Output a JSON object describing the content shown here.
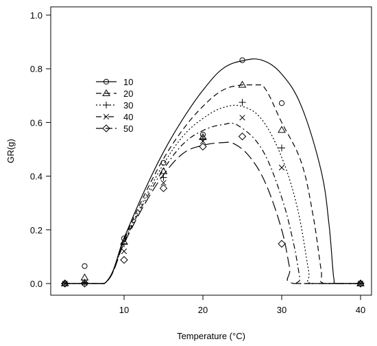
{
  "chart_data": {
    "type": "line",
    "title": "",
    "xlabel": "Temperature (°C)",
    "ylabel": "GR(g)",
    "xlim": [
      2,
      40
    ],
    "ylim": [
      0,
      1.0
    ],
    "xticks": [
      10,
      20,
      30,
      40
    ],
    "yticks": [
      0.0,
      0.2,
      0.4,
      0.6,
      0.8,
      1.0
    ],
    "xtick_labels": [
      "10",
      "20",
      "30",
      "40"
    ],
    "ytick_labels": [
      "0.0",
      "0.2",
      "0.4",
      "0.6",
      "0.8",
      "1.0"
    ],
    "grid": false,
    "legend_position": "upper-left",
    "series": [
      {
        "name": "10",
        "line_style": "solid",
        "marker": "circle",
        "points": [
          [
            2.5,
            0.0
          ],
          [
            5,
            0.065
          ],
          [
            10,
            0.168
          ],
          [
            15,
            0.45
          ],
          [
            20,
            0.555
          ],
          [
            25,
            0.832
          ],
          [
            30,
            0.672
          ],
          [
            40,
            0.0
          ]
        ],
        "curve": [
          [
            2.5,
            0.0
          ],
          [
            7.5,
            0.0
          ],
          [
            10,
            0.17
          ],
          [
            12.5,
            0.34
          ],
          [
            15,
            0.49
          ],
          [
            17.5,
            0.615
          ],
          [
            20,
            0.72
          ],
          [
            22.5,
            0.8
          ],
          [
            25,
            0.83
          ],
          [
            27.5,
            0.832
          ],
          [
            30,
            0.78
          ],
          [
            32.5,
            0.66
          ],
          [
            35,
            0.42
          ],
          [
            36,
            0.22
          ],
          [
            36.6,
            0.02
          ],
          [
            37,
            0.0
          ],
          [
            40,
            0.0
          ]
        ]
      },
      {
        "name": "20",
        "line_style": "dashed",
        "marker": "triangle",
        "points": [
          [
            2.5,
            0.0
          ],
          [
            5,
            0.022
          ],
          [
            10,
            0.155
          ],
          [
            15,
            0.418
          ],
          [
            20,
            0.545
          ],
          [
            25,
            0.74
          ],
          [
            30,
            0.572
          ],
          [
            40,
            0.0
          ]
        ],
        "curve": [
          [
            2.5,
            0.0
          ],
          [
            7.5,
            0.0
          ],
          [
            10,
            0.165
          ],
          [
            12.5,
            0.325
          ],
          [
            15,
            0.465
          ],
          [
            17.5,
            0.575
          ],
          [
            20,
            0.66
          ],
          [
            22.5,
            0.72
          ],
          [
            25,
            0.74
          ],
          [
            27.5,
            0.74
          ],
          [
            30,
            0.6
          ],
          [
            32.5,
            0.45
          ],
          [
            34,
            0.25
          ],
          [
            35,
            0.05
          ],
          [
            35.4,
            0.0
          ],
          [
            40,
            0.0
          ]
        ]
      },
      {
        "name": "30",
        "line_style": "dotted",
        "marker": "plus",
        "points": [
          [
            2.5,
            0.0
          ],
          [
            5,
            0.004
          ],
          [
            10,
            0.148
          ],
          [
            15,
            0.395
          ],
          [
            20,
            0.54
          ],
          [
            25,
            0.675
          ],
          [
            30,
            0.505
          ],
          [
            40,
            0.0
          ]
        ],
        "curve": [
          [
            2.5,
            0.0
          ],
          [
            7.5,
            0.0
          ],
          [
            10,
            0.16
          ],
          [
            12.5,
            0.31
          ],
          [
            15,
            0.445
          ],
          [
            17.5,
            0.55
          ],
          [
            20,
            0.615
          ],
          [
            22.5,
            0.655
          ],
          [
            25,
            0.66
          ],
          [
            27.5,
            0.61
          ],
          [
            30,
            0.47
          ],
          [
            32,
            0.28
          ],
          [
            33.4,
            0.05
          ],
          [
            33.8,
            0.0
          ],
          [
            40,
            0.0
          ]
        ]
      },
      {
        "name": "40",
        "line_style": "dashdot",
        "marker": "cross",
        "points": [
          [
            2.5,
            0.0
          ],
          [
            5,
            0.002
          ],
          [
            10,
            0.12
          ],
          [
            15,
            0.375
          ],
          [
            20,
            0.53
          ],
          [
            25,
            0.618
          ],
          [
            30,
            0.432
          ],
          [
            40,
            0.0
          ]
        ],
        "curve": [
          [
            2.5,
            0.0
          ],
          [
            7.5,
            0.0
          ],
          [
            10,
            0.155
          ],
          [
            12.5,
            0.3
          ],
          [
            15,
            0.425
          ],
          [
            17.5,
            0.52
          ],
          [
            20,
            0.57
          ],
          [
            22.5,
            0.592
          ],
          [
            24.5,
            0.588
          ],
          [
            27.5,
            0.5
          ],
          [
            30,
            0.32
          ],
          [
            31.5,
            0.15
          ],
          [
            32.3,
            0.02
          ],
          [
            32.5,
            0.0
          ],
          [
            40,
            0.0
          ]
        ]
      },
      {
        "name": "50",
        "line_style": "longdash",
        "marker": "diamond",
        "points": [
          [
            2.5,
            0.0
          ],
          [
            5,
            0.0
          ],
          [
            10,
            0.088
          ],
          [
            15,
            0.355
          ],
          [
            20,
            0.51
          ],
          [
            25,
            0.548
          ],
          [
            30,
            0.148
          ],
          [
            40,
            0.0
          ]
        ],
        "curve": [
          [
            2.5,
            0.0
          ],
          [
            7.5,
            0.0
          ],
          [
            10,
            0.15
          ],
          [
            12.5,
            0.29
          ],
          [
            15,
            0.405
          ],
          [
            17.5,
            0.485
          ],
          [
            20,
            0.515
          ],
          [
            22.5,
            0.525
          ],
          [
            24,
            0.52
          ],
          [
            26,
            0.47
          ],
          [
            28,
            0.37
          ],
          [
            30,
            0.2
          ],
          [
            31,
            0.06
          ],
          [
            31.5,
            0.0
          ],
          [
            40,
            0.0
          ]
        ]
      }
    ]
  }
}
